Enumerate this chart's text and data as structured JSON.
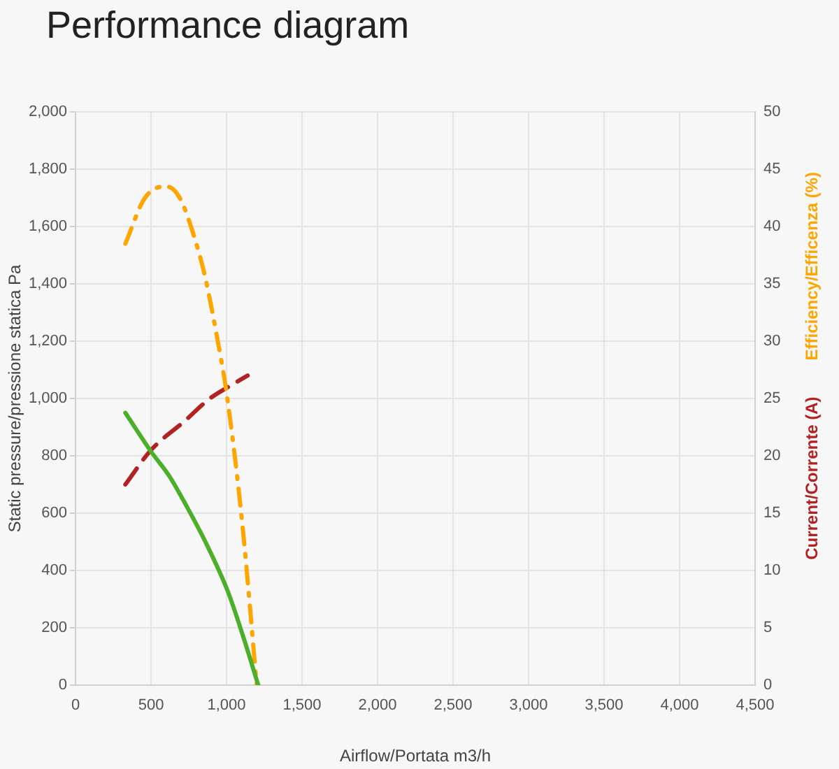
{
  "chart_data": {
    "type": "line",
    "title": "Performance diagram",
    "xlabel": "Airflow/Portata m3/h",
    "ylabel": "Static pressure/pressione statica Pa",
    "xlim": [
      0,
      4500
    ],
    "xticks": [
      0,
      500,
      {
        "value": 1000,
        "label": "1,000"
      },
      {
        "value": 1500,
        "label": "1,500"
      },
      {
        "value": 2000,
        "label": "2,000"
      },
      {
        "value": 2500,
        "label": "2,500"
      },
      {
        "value": 3000,
        "label": "3,000"
      },
      {
        "value": 3500,
        "label": "3,500"
      },
      {
        "value": 4000,
        "label": "4,000"
      },
      {
        "value": 4500,
        "label": "4,500"
      }
    ],
    "ylim": [
      0,
      2000
    ],
    "yticks": [
      0,
      200,
      400,
      600,
      800,
      {
        "value": 1000,
        "label": "1,000"
      },
      {
        "value": 1200,
        "label": "1,200"
      },
      {
        "value": 1400,
        "label": "1,400"
      },
      {
        "value": 1600,
        "label": "1,600"
      },
      {
        "value": 1800,
        "label": "1,800"
      },
      {
        "value": 2000,
        "label": "2,000"
      }
    ],
    "y2lim": [
      0,
      50
    ],
    "y2ticks": [
      0,
      5,
      10,
      15,
      20,
      25,
      30,
      35,
      40,
      45,
      50
    ],
    "grid": true,
    "legend": "right",
    "marker": "none",
    "series": [
      {
        "color": "#4caf2a",
        "line_style": "solid",
        "x": [
          330,
          500,
          620,
          740,
          860,
          1010,
          1110,
          1210
        ],
        "values": [
          950,
          815,
          730,
          620,
          500,
          325,
          170,
          0
        ]
      },
      {
        "name": "Efficiency/Efficenza (%)",
        "color": "#ffa500",
        "axis": "y2",
        "line_style": "dashdot",
        "x": [
          330,
          460,
          600,
          690,
          800,
          860,
          935,
          1000,
          1105,
          1200
        ],
        "values": [
          38.5,
          42.5,
          43.5,
          42.5,
          38.5,
          35.5,
          30.5,
          25.5,
          14,
          0
        ]
      },
      {
        "name": "Current/Corrente (A)",
        "color": "#b22222",
        "axis": "y2",
        "line_style": "dashed",
        "x": [
          330,
          500,
          720,
          890,
          1010,
          1075,
          1140
        ],
        "values": [
          17.5,
          20.5,
          23,
          25,
          26,
          26.5,
          27
        ]
      }
    ]
  }
}
